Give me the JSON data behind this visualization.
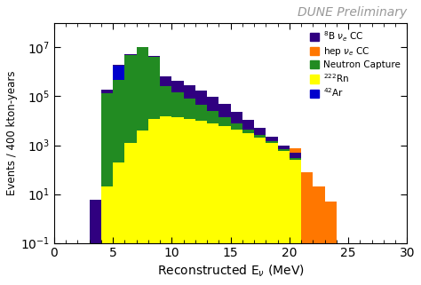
{
  "title": "DUNE Preliminary",
  "xlabel": "Reconstructed E$_\\nu$ (MeV)",
  "ylabel": "Events / 400 kton-years",
  "xlim": [
    0,
    30
  ],
  "ylim": [
    0.1,
    100000000.0
  ],
  "bin_edges": [
    3,
    4,
    5,
    6,
    7,
    8,
    9,
    10,
    11,
    12,
    13,
    14,
    15,
    16,
    17,
    18,
    19,
    20,
    21,
    22,
    23,
    24
  ],
  "B8_nu_e_CC": [
    6,
    50000.0,
    200000.0,
    500000.0,
    500000.0,
    500000.0,
    400000.0,
    300000.0,
    200000.0,
    120000.0,
    70000.0,
    35000.0,
    15000.0,
    6000.0,
    2500.0,
    800,
    300,
    200,
    0,
    0,
    0
  ],
  "hep_nu_e_CC": [
    0,
    0,
    0,
    0,
    0,
    0,
    0,
    0,
    0,
    0,
    0,
    0,
    0,
    0,
    0,
    0,
    0,
    250,
    80,
    20,
    5
  ],
  "NeutronCapture": [
    0,
    130000.0,
    450000.0,
    4800000.0,
    10000000.0,
    4000000.0,
    250000.0,
    130000.0,
    70000.0,
    35000.0,
    18000.0,
    8000.0,
    3500.0,
    1500.0,
    600,
    250,
    100,
    40,
    0,
    0,
    0
  ],
  "Rn222": [
    0,
    20,
    200,
    1200,
    4000,
    12000.0,
    15000.0,
    14000.0,
    12000.0,
    10000.0,
    8000.0,
    6000.0,
    4500.0,
    3000.0,
    2000.0,
    1200.0,
    600,
    250,
    0,
    0,
    0
  ],
  "Ar42": [
    0,
    0,
    1300000.0,
    0,
    0,
    0,
    0,
    0,
    0,
    0,
    0,
    0,
    0,
    0,
    0,
    0,
    0,
    0,
    0,
    0,
    0
  ],
  "colors": {
    "B8_nu_e_CC": "#300080",
    "hep_nu_e_CC": "#FF7700",
    "NeutronCapture": "#228B22",
    "Rn222": "#FFFF00",
    "Ar42": "#0000CC"
  }
}
